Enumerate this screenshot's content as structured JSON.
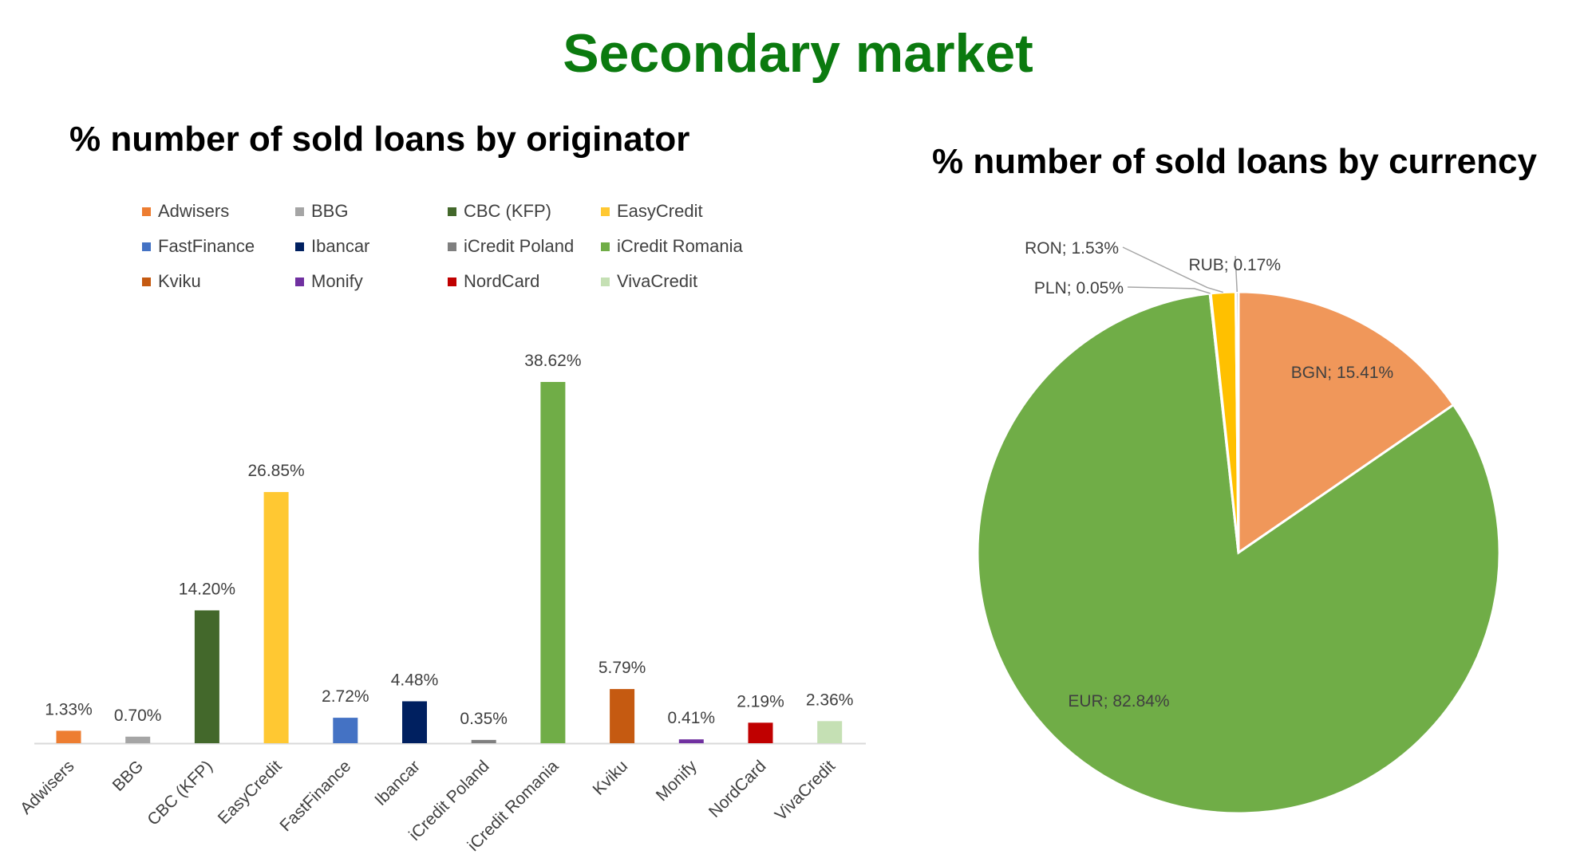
{
  "page": {
    "title": "Secondary market"
  },
  "chart_data": [
    {
      "type": "bar",
      "title": "% number of sold loans by originator",
      "categories": [
        "Adwisers",
        "BBG",
        "CBC (KFP)",
        "EasyCredit",
        "FastFinance",
        "Ibancar",
        "iCredit Poland",
        "iCredit Romania",
        "Kviku",
        "Monify",
        "NordCard",
        "VivaCredit"
      ],
      "values": [
        1.33,
        0.7,
        14.2,
        26.85,
        2.72,
        4.48,
        0.35,
        38.62,
        5.79,
        0.41,
        2.19,
        2.36
      ],
      "data_labels": [
        "1.33%",
        "0.70%",
        "14.20%",
        "26.85%",
        "2.72%",
        "4.48%",
        "0.35%",
        "38.62%",
        "5.79%",
        "0.41%",
        "2.19%",
        "2.36%"
      ],
      "colors": [
        "#ed7d31",
        "#a5a5a5",
        "#43682b",
        "#ffc832",
        "#4472c4",
        "#002060",
        "#7f7f7f",
        "#70ad47",
        "#c55a11",
        "#7030a0",
        "#c00000",
        "#c5e0b4"
      ],
      "ylim": [
        0,
        40
      ],
      "grid": false,
      "legend_position": "top",
      "legend": [
        "Adwisers",
        "BBG",
        "CBC (KFP)",
        "EasyCredit",
        "FastFinance",
        "Ibancar",
        "iCredit Poland",
        "iCredit Romania",
        "Kviku",
        "Monify",
        "NordCard",
        "VivaCredit"
      ]
    },
    {
      "type": "pie",
      "title": "% number of sold loans by currency",
      "categories": [
        "BGN",
        "EUR",
        "PLN",
        "RON",
        "RUB"
      ],
      "values": [
        15.41,
        82.84,
        0.05,
        1.53,
        0.17
      ],
      "data_labels": [
        "BGN; 15.41%",
        "EUR; 82.84%",
        "PLN; 0.05%",
        "RON; 1.53%",
        "RUB; 0.17%"
      ],
      "colors": [
        "#f0975a",
        "#70ad47",
        "#4472c4",
        "#ffc000",
        "#a5a5a5"
      ]
    }
  ]
}
